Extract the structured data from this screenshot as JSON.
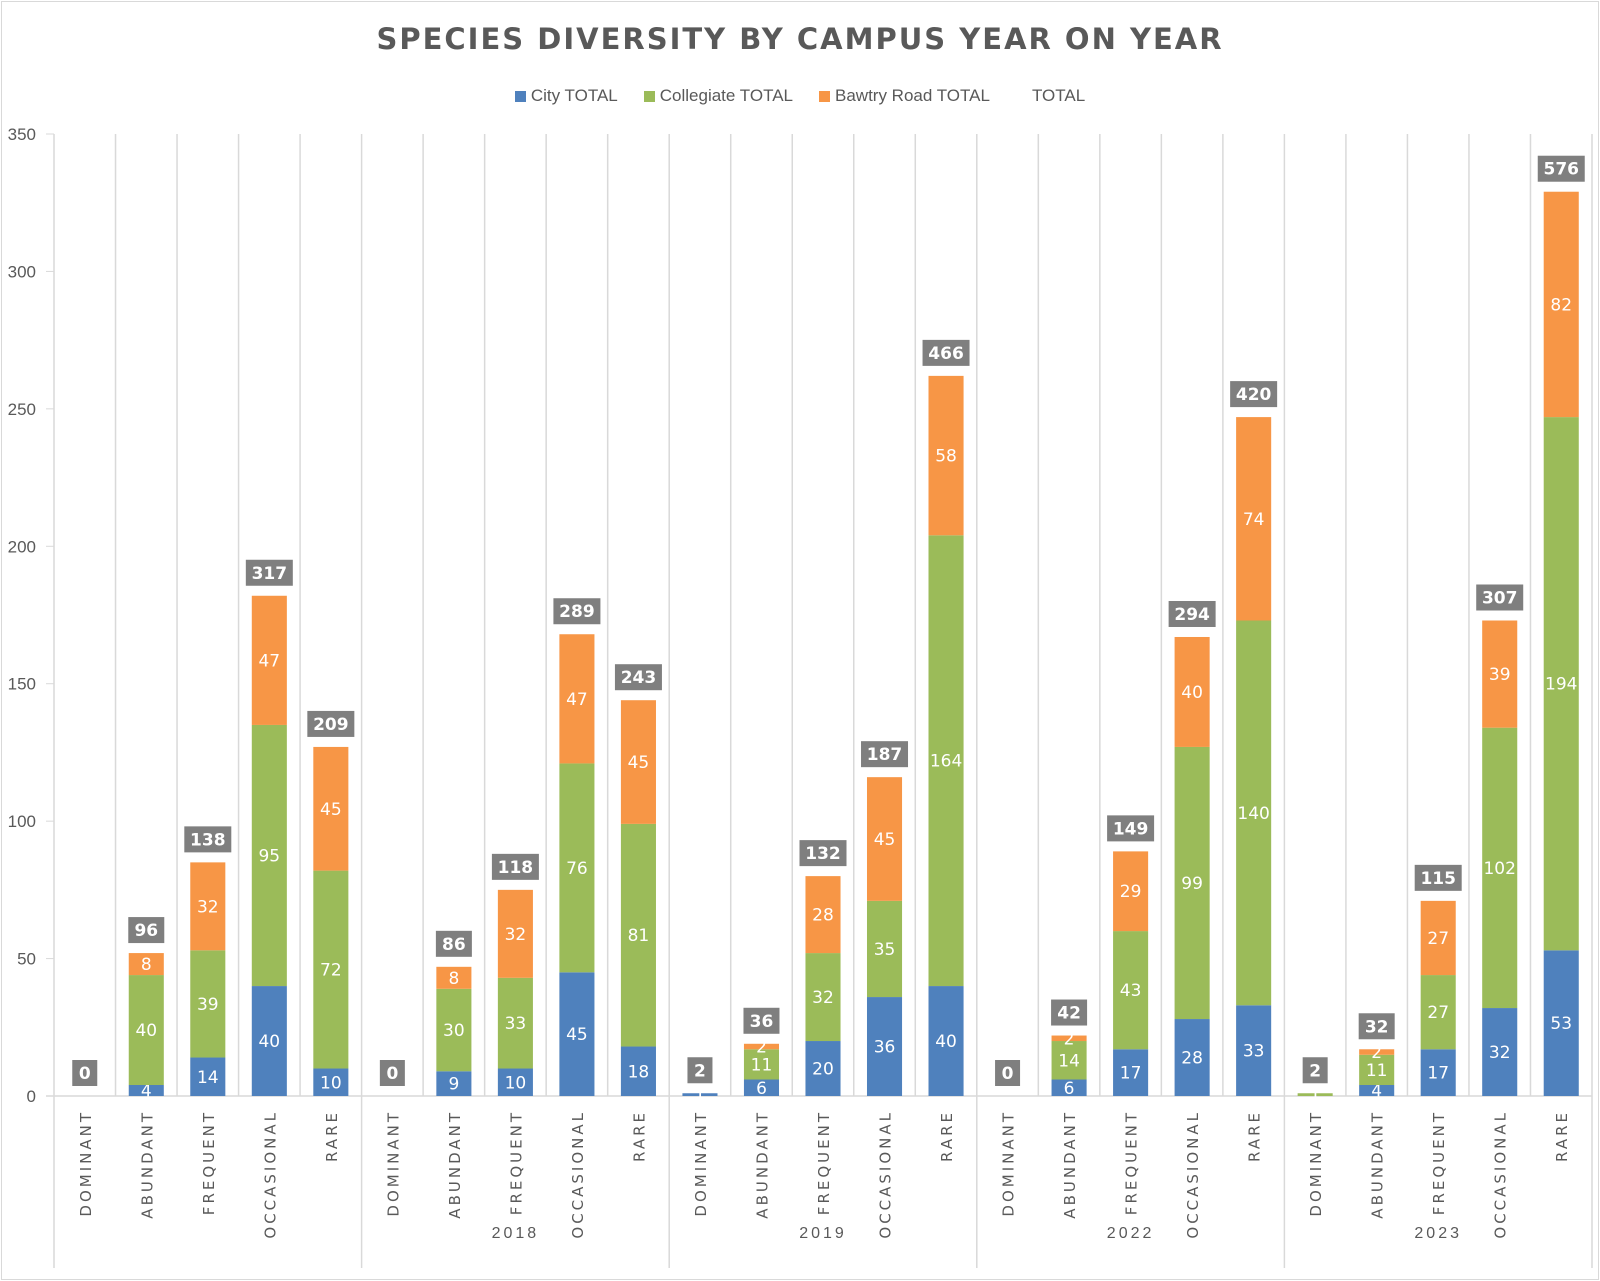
{
  "chart_data": {
    "type": "bar",
    "stacked": true,
    "title": "SPECIES DIVERSITY BY CAMPUS YEAR ON YEAR",
    "xlabel": "",
    "ylabel": "",
    "ylim": [
      0,
      350
    ],
    "yticks": [
      0,
      50,
      100,
      150,
      200,
      250,
      300,
      350
    ],
    "grid": "vertical category separators",
    "legend_position": "top",
    "categories": [
      "DOMINANT",
      "ABUNDANT",
      "FREQUENT",
      "OCCASIONAL",
      "RARE"
    ],
    "groups": [
      {
        "label": "",
        "series": {
          "City TOTAL": [
            0,
            4,
            14,
            40,
            10
          ],
          "Collegiate TOTAL": [
            0,
            40,
            39,
            95,
            72
          ],
          "Bawtry Road TOTAL": [
            0,
            8,
            32,
            47,
            45
          ],
          "TOTAL": [
            0,
            96,
            138,
            317,
            209
          ]
        }
      },
      {
        "label": "2018",
        "series": {
          "City TOTAL": [
            0,
            9,
            10,
            45,
            18
          ],
          "Collegiate TOTAL": [
            0,
            30,
            33,
            76,
            81
          ],
          "Bawtry Road TOTAL": [
            0,
            8,
            32,
            47,
            45
          ],
          "TOTAL": [
            0,
            86,
            118,
            289,
            243
          ]
        }
      },
      {
        "label": "2019",
        "series": {
          "City TOTAL": [
            1,
            6,
            20,
            36,
            40
          ],
          "Collegiate TOTAL": [
            0,
            11,
            32,
            35,
            164
          ],
          "Bawtry Road TOTAL": [
            0,
            2,
            28,
            45,
            58
          ],
          "TOTAL": [
            2,
            36,
            132,
            187,
            466
          ]
        }
      },
      {
        "label": "2022",
        "series": {
          "City TOTAL": [
            0,
            6,
            17,
            28,
            33
          ],
          "Collegiate TOTAL": [
            0,
            14,
            43,
            99,
            140
          ],
          "Bawtry Road TOTAL": [
            0,
            2,
            29,
            40,
            74
          ],
          "TOTAL": [
            0,
            42,
            149,
            294,
            420
          ]
        }
      },
      {
        "label": "2023",
        "series": {
          "City TOTAL": [
            0,
            4,
            17,
            32,
            53
          ],
          "Collegiate TOTAL": [
            1,
            11,
            27,
            102,
            194
          ],
          "Bawtry Road TOTAL": [
            0,
            2,
            27,
            39,
            82
          ],
          "TOTAL": [
            2,
            32,
            115,
            307,
            576
          ]
        }
      }
    ],
    "legend": [
      {
        "name": "City TOTAL",
        "color": "#4f81bd"
      },
      {
        "name": "Collegiate TOTAL",
        "color": "#9bbb59"
      },
      {
        "name": "Bawtry Road TOTAL",
        "color": "#f79646"
      },
      {
        "name": "TOTAL",
        "color": "none"
      }
    ],
    "total_label_color": "#7f7f7f"
  }
}
